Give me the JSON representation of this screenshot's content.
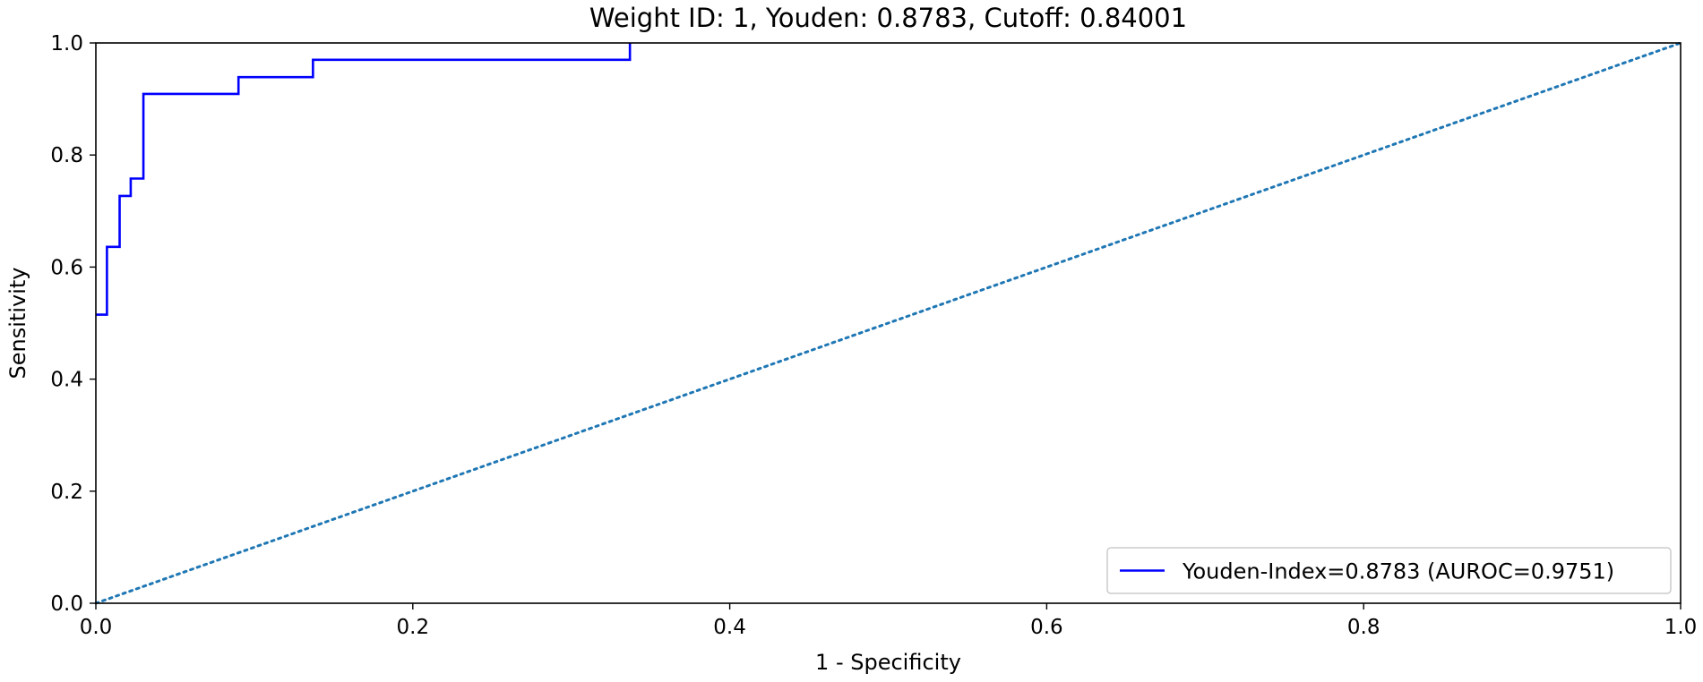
{
  "chart_data": {
    "type": "line",
    "title": "Weight ID: 1, Youden: 0.8783, Cutoff: 0.84001",
    "xlabel": "1 - Specificity",
    "ylabel": "Sensitivity",
    "xlim": [
      0.0,
      1.0
    ],
    "ylim": [
      0.0,
      1.0
    ],
    "xticks": [
      "0.0",
      "0.2",
      "0.4",
      "0.6",
      "0.8",
      "1.0"
    ],
    "yticks": [
      "0.0",
      "0.2",
      "0.4",
      "0.6",
      "0.8",
      "1.0"
    ],
    "grid": false,
    "legend_position": "lower-right",
    "series": [
      {
        "name": "Youden-Index=0.8783 (AUROC=0.9751)",
        "color": "#0000ff",
        "style": "solid-step",
        "x": [
          0.0,
          0.007,
          0.007,
          0.015,
          0.015,
          0.022,
          0.022,
          0.03,
          0.03,
          0.09,
          0.09,
          0.137,
          0.137,
          0.337,
          0.337
        ],
        "y": [
          0.515,
          0.515,
          0.636,
          0.636,
          0.727,
          0.727,
          0.758,
          0.758,
          0.909,
          0.909,
          0.939,
          0.939,
          0.97,
          0.97,
          1.0
        ]
      },
      {
        "name": "",
        "color": "#1f77b4",
        "style": "dotted",
        "x": [
          0.0,
          1.0
        ],
        "y": [
          0.0,
          1.0
        ]
      }
    ]
  }
}
